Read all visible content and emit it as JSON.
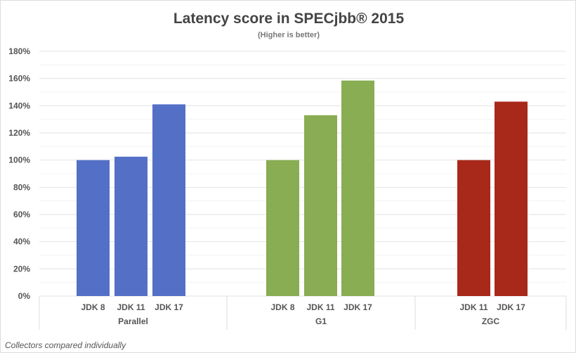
{
  "chart_data": {
    "type": "bar",
    "title": "Latency score in SPECjbb® 2015",
    "subtitle": "(Higher is better)",
    "footnote": "Collectors compared individually",
    "ylim": [
      0,
      180
    ],
    "yticks": [
      "0%",
      "20%",
      "40%",
      "60%",
      "80%",
      "100%",
      "120%",
      "140%",
      "160%",
      "180%"
    ],
    "grid": true,
    "groups": [
      {
        "name": "Parallel",
        "color": "#5470C6",
        "categories": [
          "JDK 8",
          "JDK 11",
          "JDK 17"
        ],
        "values": [
          100,
          102.5,
          141
        ]
      },
      {
        "name": "G1",
        "color": "#88AD52",
        "categories": [
          "JDK 8",
          "JDK 11",
          "JDK 17"
        ],
        "values": [
          100,
          133,
          158.5
        ]
      },
      {
        "name": "ZGC",
        "color": "#A8281A",
        "categories": [
          "JDK 11",
          "JDK 17"
        ],
        "values": [
          100,
          143
        ]
      }
    ]
  }
}
